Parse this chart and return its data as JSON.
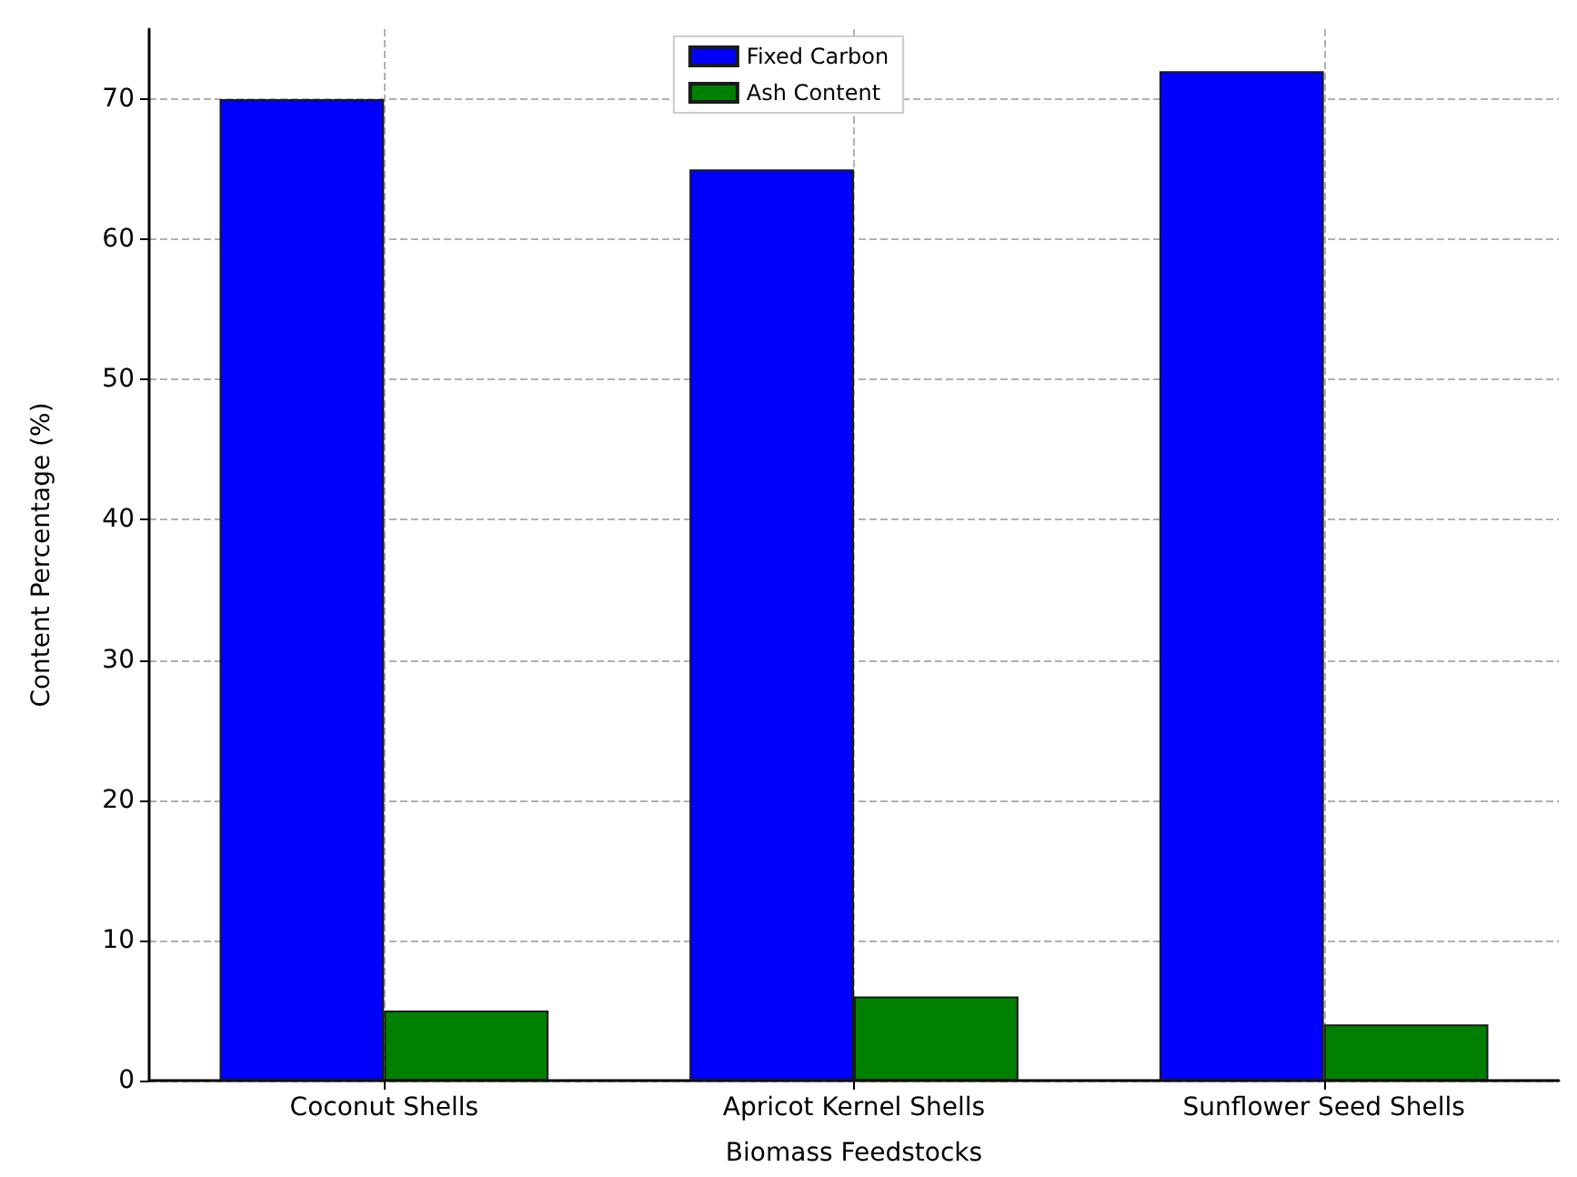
{
  "chart_data": {
    "type": "bar",
    "xlabel": "Biomass Feedstocks",
    "ylabel": "Content Percentage (%)",
    "categories": [
      "Coconut Shells",
      "Apricot Kernel Shells",
      "Sunflower Seed Shells"
    ],
    "series": [
      {
        "name": "Fixed Carbon",
        "color": "#0000ff",
        "values": [
          70,
          65,
          72
        ]
      },
      {
        "name": "Ash Content",
        "color": "#008000",
        "values": [
          5,
          6,
          4
        ]
      }
    ],
    "ylim": [
      0,
      75
    ],
    "yticks": [
      0,
      10,
      20,
      30,
      40,
      50,
      60,
      70
    ],
    "grid": true,
    "legend": "top"
  }
}
